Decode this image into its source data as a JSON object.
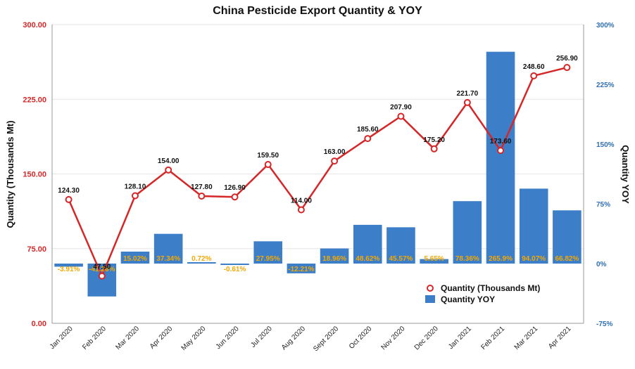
{
  "chart_data": {
    "type": "bar",
    "title": "China Pesticide Export Quantity & YOY",
    "categories": [
      "Jan 2020",
      "Feb 2020",
      "Mar 2020",
      "Apr 2020",
      "May 2020",
      "Jun 2020",
      "Jul 2020",
      "Aug 2020",
      "Sept 2020",
      "Oct 2020",
      "Nov 2020",
      "Dec 2020",
      "Jan 2021",
      "Feb 2021",
      "Mar 2021",
      "Apr 2021"
    ],
    "series": [
      {
        "name": "Quantity (Thousands Mt)",
        "type": "line",
        "axis": "left",
        "values": [
          124.3,
          47.5,
          128.1,
          154.0,
          127.8,
          126.9,
          159.5,
          114.0,
          163.0,
          185.6,
          207.9,
          175.2,
          221.7,
          173.6,
          248.6,
          256.9
        ],
        "labels": [
          "124.30",
          "47.50",
          "128.10",
          "154.00",
          "127.80",
          "126.90",
          "159.50",
          "114.00",
          "163.00",
          "185.60",
          "207.90",
          "175.20",
          "221.70",
          "173.60",
          "248.60",
          "256.90"
        ]
      },
      {
        "name": "Quantity YOY",
        "type": "bar",
        "axis": "right",
        "values": [
          -3.91,
          -41.26,
          15.02,
          37.34,
          0.72,
          -0.61,
          27.95,
          -12.21,
          18.96,
          48.62,
          45.57,
          5.65,
          78.36,
          265.9,
          94.07,
          66.82
        ],
        "labels": [
          "-3.91%",
          "-41.26%",
          "15.02%",
          "37.34%",
          "0.72%",
          "-0.61%",
          "27.95%",
          "-12.21%",
          "18.96%",
          "48.62%",
          "45.57%",
          "5.65%",
          "78.36%",
          "265.9%",
          "94.07%",
          "66.82%"
        ]
      }
    ],
    "ylabel": "Quantity (Thousands Mt)",
    "y2label": "Quantity YOY",
    "ylim": [
      0,
      300
    ],
    "y2lim": [
      -75,
      300
    ],
    "yticks": [
      "0.00",
      "75.00",
      "150.00",
      "225.00",
      "300.00"
    ],
    "y2ticks": [
      "-75%",
      "0%",
      "75%",
      "150%",
      "225%",
      "300%"
    ],
    "grid": true,
    "legend": "bottom-right",
    "colors": {
      "line": "#d62728",
      "bar": "#3c7ec7",
      "yoy_label": "#f5a800",
      "left_axis": "#d62728",
      "right_axis": "#2f6fb3"
    }
  }
}
